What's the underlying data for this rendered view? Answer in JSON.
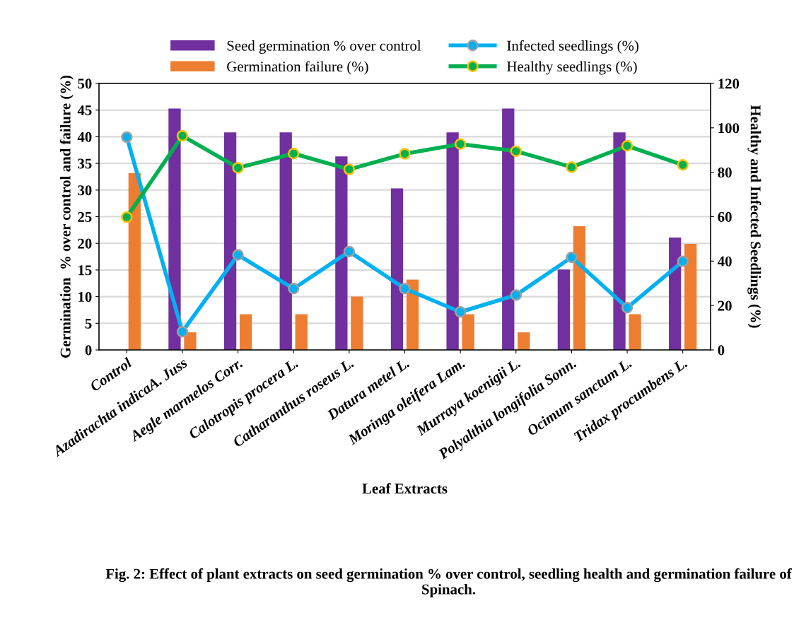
{
  "chart_data": {
    "type": "bar",
    "title": "Fig. 2: Effect of plant extracts on seed germination % over control, seedling health and germination failure of Spinach.",
    "xlabel": "Leaf Extracts",
    "ylabel": "Germination  % over control and failure (%)",
    "y2label": "Healthy and Infected Seedlings (%)",
    "categories": [
      "Control",
      "Azadirachta indicaA. Juss",
      "Aegle marmelos Corr.",
      "Calotropis procera L.",
      "Catharanthus roseus L.",
      "Datura metel L.",
      "Moringa oleifera Lam.",
      "Murraya koenigii L.",
      "Polyalthia longifolia Sonn.",
      "Ocimum sanctum L.",
      "Tridax procumbens L."
    ],
    "series": [
      {
        "name": "Seed germination % over control",
        "color": "#7030a0",
        "values": [
          null,
          45.3,
          40.8,
          40.8,
          36.3,
          30.3,
          40.8,
          45.3,
          15.1,
          40.8,
          21.1
        ]
      },
      {
        "name": "Germination failure (%)",
        "color": "#ed7d31",
        "values": [
          33.2,
          3.3,
          6.7,
          6.7,
          10.0,
          13.2,
          6.7,
          3.3,
          23.2,
          6.7,
          19.9
        ]
      },
      {
        "name": "Infected seedlings (%)",
        "type": "line",
        "axis": "y2",
        "color": "#00b0f0",
        "values": [
          95.8,
          8.2,
          42.8,
          27.6,
          44.3,
          27.6,
          17.1,
          24.7,
          41.7,
          19.0,
          39.9
        ]
      },
      {
        "name": "Healthy seedlings (%)",
        "type": "line",
        "axis": "y2",
        "color": "#00b050",
        "values": [
          59.8,
          96.4,
          82.0,
          88.4,
          81.3,
          88.3,
          92.7,
          89.5,
          82.3,
          91.9,
          83.3
        ]
      }
    ],
    "ylim": [
      0,
      50
    ],
    "yticks": [
      0,
      5,
      10,
      15,
      20,
      25,
      30,
      35,
      40,
      45,
      50
    ],
    "y2lim": [
      0,
      120
    ],
    "y2ticks": [
      0,
      20,
      40,
      60,
      80,
      100,
      120
    ],
    "grid": "y",
    "legend": "top",
    "marker": "circle",
    "line_style": "solid"
  }
}
